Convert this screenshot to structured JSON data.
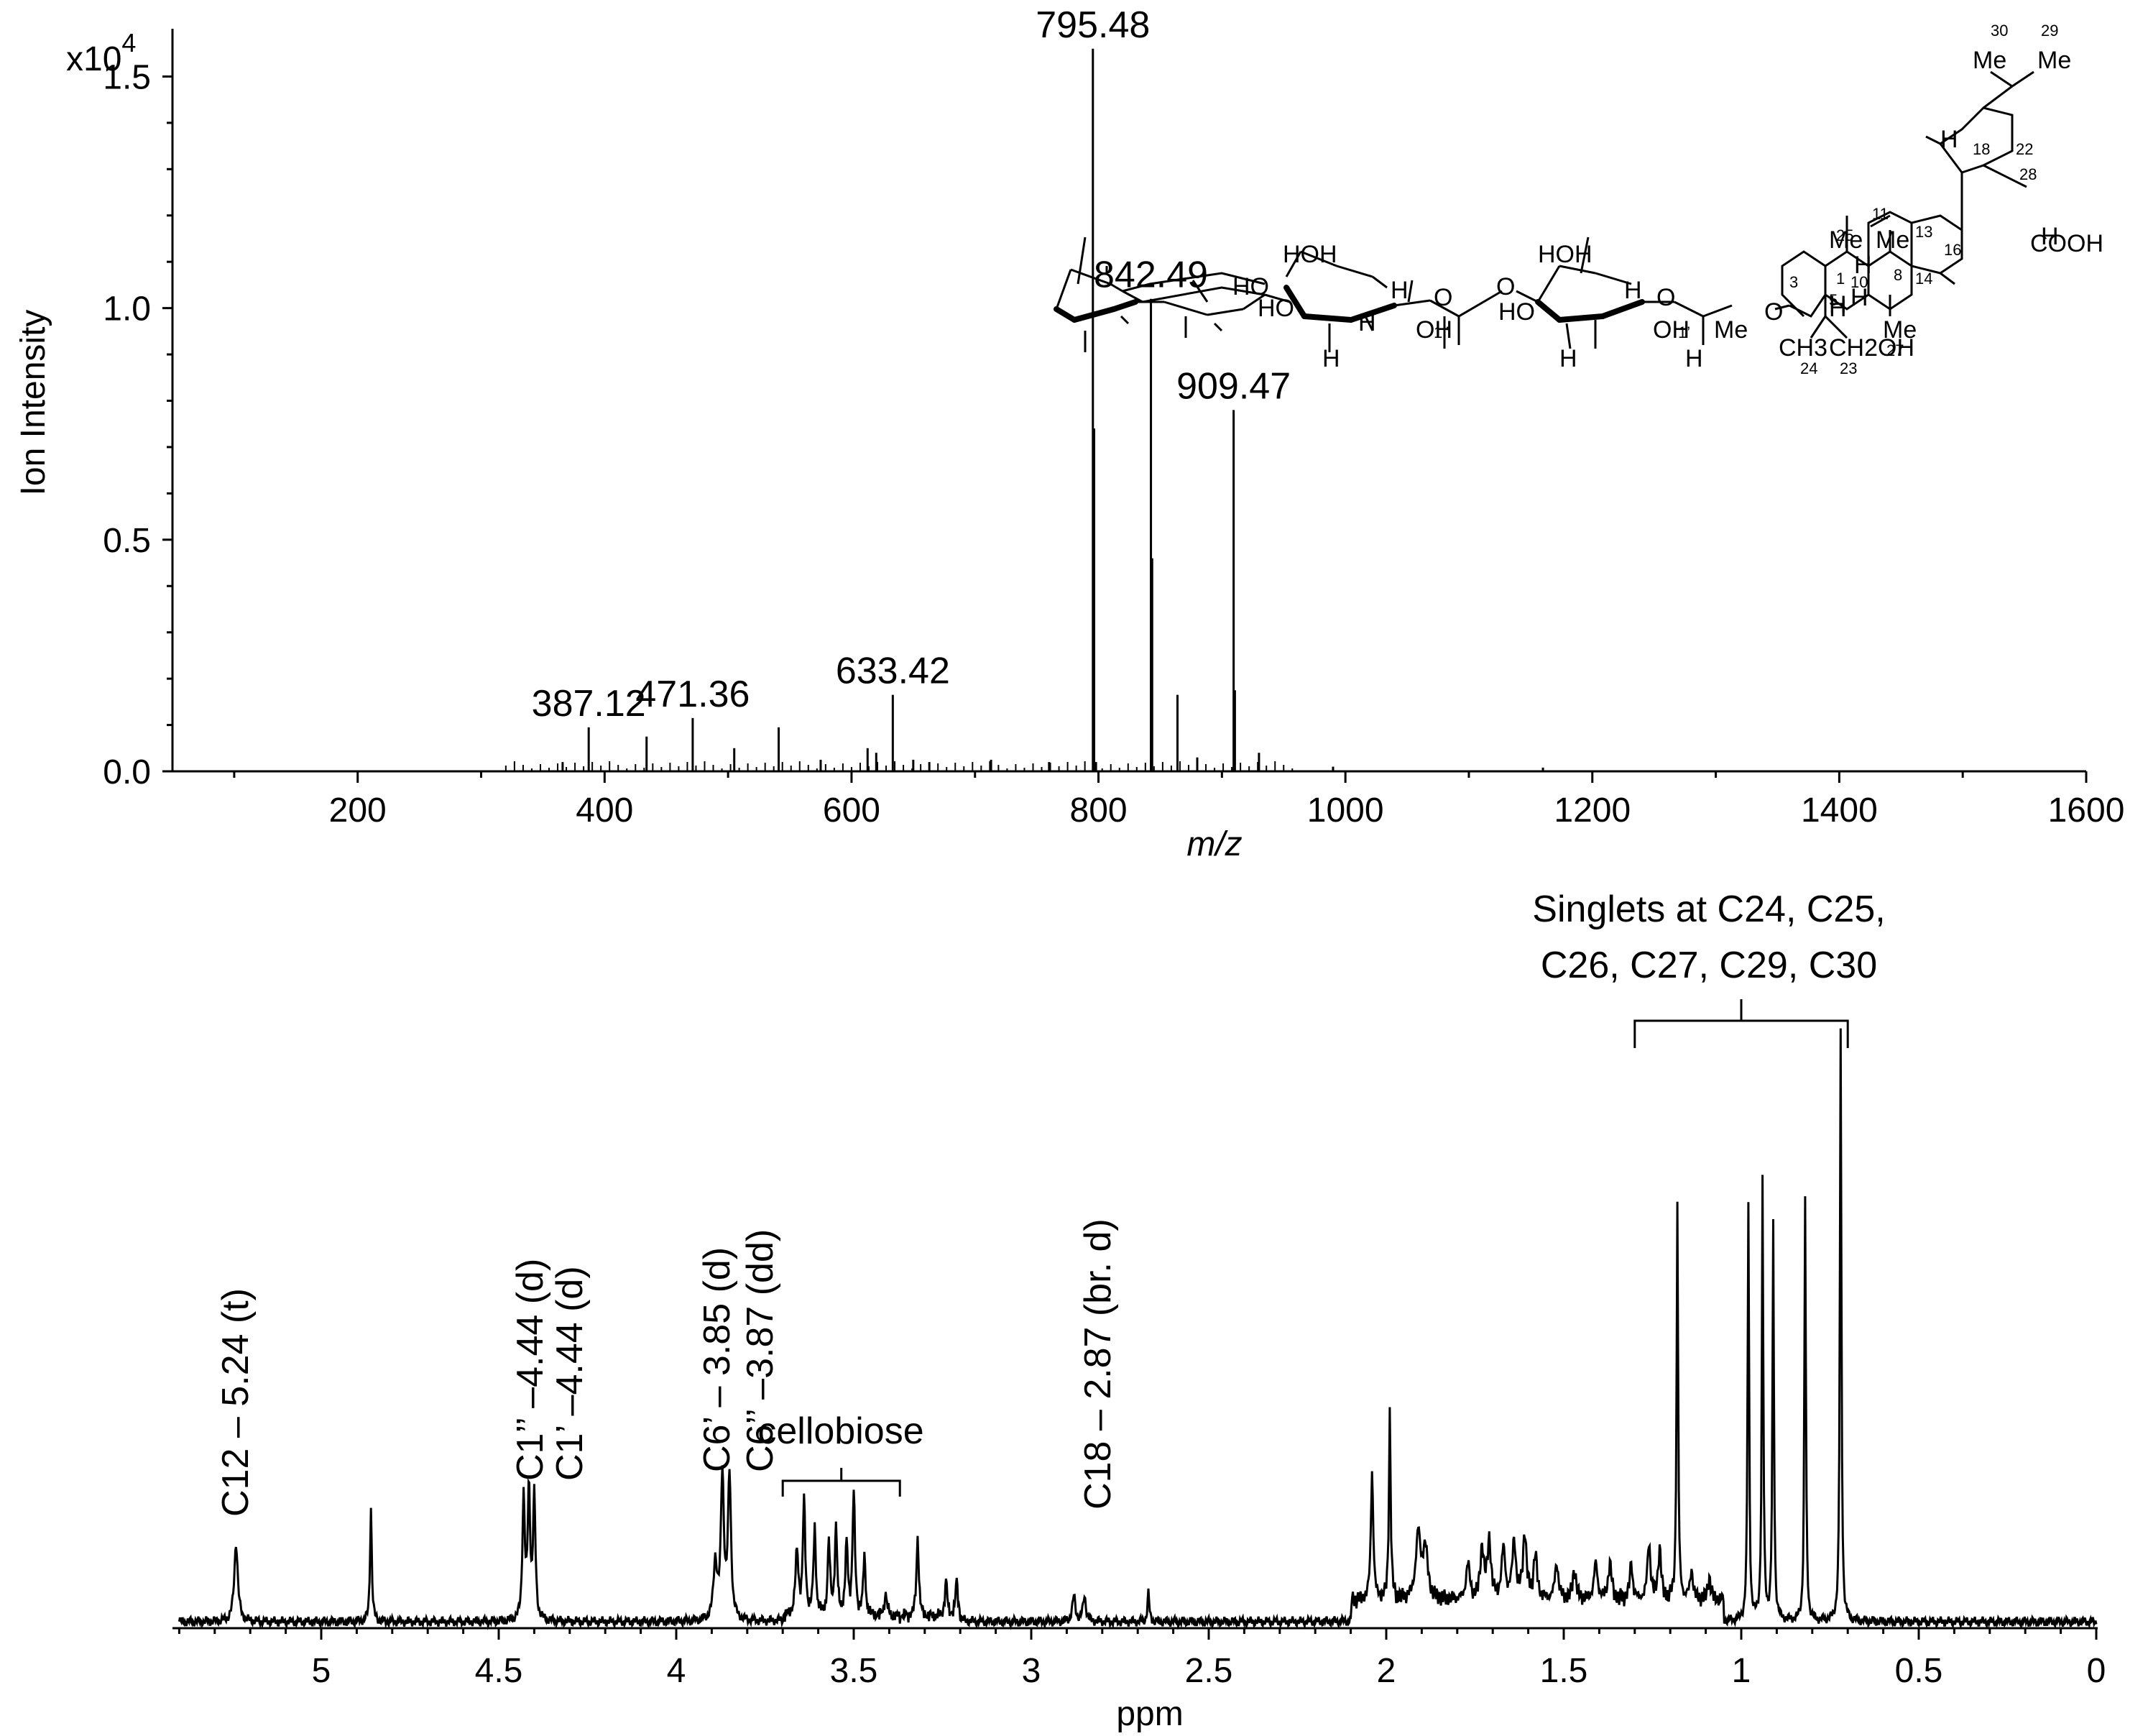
{
  "chart_data": [
    {
      "type": "bar",
      "title": "",
      "xlabel": "m/z",
      "ylabel": "Ion Intensity",
      "y_multiplier": "x10",
      "y_multiplier_exp": "4",
      "xlim": [
        50,
        1600
      ],
      "ylim": [
        0,
        1.6
      ],
      "x_ticks": [
        200,
        400,
        600,
        800,
        1000,
        1200,
        1400,
        1600
      ],
      "y_ticks": [
        0.0,
        0.5,
        1.0,
        1.5
      ],
      "y_tick_labels": [
        "0.0",
        "0.5",
        "1.0",
        "1.5"
      ],
      "grid": false,
      "peaks": [
        {
          "x": 366,
          "y": 0.02
        },
        {
          "x": 387.12,
          "y": 0.095
        },
        {
          "x": 434,
          "y": 0.075
        },
        {
          "x": 471.36,
          "y": 0.115
        },
        {
          "x": 505,
          "y": 0.05
        },
        {
          "x": 541,
          "y": 0.095
        },
        {
          "x": 575,
          "y": 0.025
        },
        {
          "x": 613,
          "y": 0.05
        },
        {
          "x": 620,
          "y": 0.04
        },
        {
          "x": 633.42,
          "y": 0.165
        },
        {
          "x": 650,
          "y": 0.025
        },
        {
          "x": 663,
          "y": 0.02
        },
        {
          "x": 713,
          "y": 0.025
        },
        {
          "x": 760,
          "y": 0.02
        },
        {
          "x": 795.48,
          "y": 1.56
        },
        {
          "x": 796.5,
          "y": 0.74
        },
        {
          "x": 798,
          "y": 0.02
        },
        {
          "x": 842.49,
          "y": 1.02
        },
        {
          "x": 843.5,
          "y": 0.46
        },
        {
          "x": 864,
          "y": 0.165
        },
        {
          "x": 880,
          "y": 0.03
        },
        {
          "x": 909.47,
          "y": 0.78
        },
        {
          "x": 910.5,
          "y": 0.175
        },
        {
          "x": 930,
          "y": 0.04
        },
        {
          "x": 990,
          "y": 0.01
        },
        {
          "x": 1160,
          "y": 0.008
        }
      ],
      "labels": [
        {
          "x": 387.12,
          "text": "387.12"
        },
        {
          "x": 471.36,
          "text": "471.36"
        },
        {
          "x": 633.42,
          "text": "633.42"
        },
        {
          "x": 795.48,
          "text": "795.48"
        },
        {
          "x": 842.49,
          "text": "842.49"
        },
        {
          "x": 909.47,
          "text": "909.47"
        }
      ]
    },
    {
      "type": "line",
      "title": "",
      "xlabel": "ppm",
      "ylabel": "",
      "xlim": [
        5.4,
        0
      ],
      "x_reversed": true,
      "x_ticks": [
        5,
        4.5,
        4,
        3.5,
        3,
        2.5,
        2,
        1.5,
        1,
        0.5,
        0
      ],
      "grid": false,
      "peaks": [
        {
          "ppm": 5.24,
          "h": 0.11,
          "w": 0.006
        },
        {
          "ppm": 4.86,
          "h": 0.16,
          "w": 0.003
        },
        {
          "ppm": 4.43,
          "h": 0.17,
          "w": 0.004
        },
        {
          "ppm": 4.415,
          "h": 0.18,
          "w": 0.004
        },
        {
          "ppm": 4.4,
          "h": 0.17,
          "w": 0.004
        },
        {
          "ppm": 3.89,
          "h": 0.08,
          "w": 0.006
        },
        {
          "ppm": 3.87,
          "h": 0.2,
          "w": 0.005
        },
        {
          "ppm": 3.85,
          "h": 0.2,
          "w": 0.005
        },
        {
          "ppm": 3.66,
          "h": 0.09,
          "w": 0.005
        },
        {
          "ppm": 3.64,
          "h": 0.16,
          "w": 0.004
        },
        {
          "ppm": 3.61,
          "h": 0.12,
          "w": 0.004
        },
        {
          "ppm": 3.57,
          "h": 0.1,
          "w": 0.004
        },
        {
          "ppm": 3.55,
          "h": 0.12,
          "w": 0.004
        },
        {
          "ppm": 3.52,
          "h": 0.1,
          "w": 0.004
        },
        {
          "ppm": 3.5,
          "h": 0.17,
          "w": 0.004
        },
        {
          "ppm": 3.47,
          "h": 0.08,
          "w": 0.004
        },
        {
          "ppm": 3.41,
          "h": 0.03,
          "w": 0.005
        },
        {
          "ppm": 3.32,
          "h": 0.11,
          "w": 0.004
        },
        {
          "ppm": 3.24,
          "h": 0.05,
          "w": 0.004
        },
        {
          "ppm": 3.21,
          "h": 0.05,
          "w": 0.004
        },
        {
          "ppm": 2.88,
          "h": 0.035,
          "w": 0.005
        },
        {
          "ppm": 2.85,
          "h": 0.035,
          "w": 0.005
        },
        {
          "ppm": 2.67,
          "h": 0.04,
          "w": 0.003
        },
        {
          "ppm": 2.04,
          "h": 0.18,
          "w": 0.004
        },
        {
          "ppm": 1.99,
          "h": 0.26,
          "w": 0.003
        },
        {
          "ppm": 1.91,
          "h": 0.09,
          "w": 0.008
        },
        {
          "ppm": 1.89,
          "h": 0.07,
          "w": 0.008
        },
        {
          "ppm": 1.77,
          "h": 0.05,
          "w": 0.006
        },
        {
          "ppm": 1.73,
          "h": 0.07,
          "w": 0.006
        },
        {
          "ppm": 1.71,
          "h": 0.08,
          "w": 0.006
        },
        {
          "ppm": 1.67,
          "h": 0.07,
          "w": 0.006
        },
        {
          "ppm": 1.64,
          "h": 0.08,
          "w": 0.006
        },
        {
          "ppm": 1.61,
          "h": 0.09,
          "w": 0.006
        },
        {
          "ppm": 1.58,
          "h": 0.06,
          "w": 0.006
        },
        {
          "ppm": 1.52,
          "h": 0.05,
          "w": 0.006
        },
        {
          "ppm": 1.47,
          "h": 0.04,
          "w": 0.006
        },
        {
          "ppm": 1.41,
          "h": 0.05,
          "w": 0.006
        },
        {
          "ppm": 1.37,
          "h": 0.05,
          "w": 0.006
        },
        {
          "ppm": 1.31,
          "h": 0.05,
          "w": 0.005
        },
        {
          "ppm": 1.26,
          "h": 0.08,
          "w": 0.005
        },
        {
          "ppm": 1.23,
          "h": 0.07,
          "w": 0.005
        },
        {
          "ppm": 1.18,
          "h": 0.55,
          "w": 0.0025
        },
        {
          "ppm": 1.14,
          "h": 0.04,
          "w": 0.005
        },
        {
          "ppm": 1.09,
          "h": 0.03,
          "w": 0.005
        },
        {
          "ppm": 0.98,
          "h": 0.58,
          "w": 0.0025
        },
        {
          "ppm": 0.94,
          "h": 0.61,
          "w": 0.0025
        },
        {
          "ppm": 0.91,
          "h": 0.55,
          "w": 0.0025
        },
        {
          "ppm": 0.82,
          "h": 0.59,
          "w": 0.0025
        },
        {
          "ppm": 0.72,
          "h": 0.82,
          "w": 0.0025
        }
      ],
      "annotations": [
        {
          "ppm": 5.24,
          "text": "C12 – 5.24 (t)"
        },
        {
          "ppm": 4.43,
          "text": "C1’’ –4.44 (d)"
        },
        {
          "ppm": 4.415,
          "text": "C1’ –4.44 (d)"
        },
        {
          "ppm": 3.89,
          "text": "C6’ – 3.85 (d)"
        },
        {
          "ppm": 3.85,
          "text": "C6’’ –3.87 (dd)"
        },
        {
          "ppm": 2.87,
          "text": "C18 – 2.87 (br. d)"
        }
      ],
      "brackets": [
        {
          "from": 3.7,
          "to": 3.37,
          "text": [
            "cellobiose"
          ]
        },
        {
          "from": 1.3,
          "to": 0.7,
          "text": [
            "Singlets at C24, C25,",
            "C26, C27, C29, C30"
          ]
        }
      ]
    }
  ],
  "structure": {
    "atom_labels": [
      "HOH",
      "HO",
      "HO",
      "H",
      "O",
      "1’’",
      "OH",
      "H",
      "H",
      "O",
      "HOH",
      "HO",
      "H",
      "O",
      "1’",
      "OH",
      "H",
      "H",
      "O",
      "3",
      "CH3",
      "CH2OH",
      "Me",
      "Me",
      "H",
      "H",
      "Me",
      "H",
      "H",
      "Me",
      "Me",
      "Me",
      "H",
      "H",
      "COOH"
    ],
    "numbers": [
      "1",
      "5",
      "10",
      "11",
      "13",
      "14",
      "8",
      "16",
      "18",
      "22",
      "24",
      "23",
      "25",
      "27",
      "28",
      "29",
      "30"
    ]
  }
}
